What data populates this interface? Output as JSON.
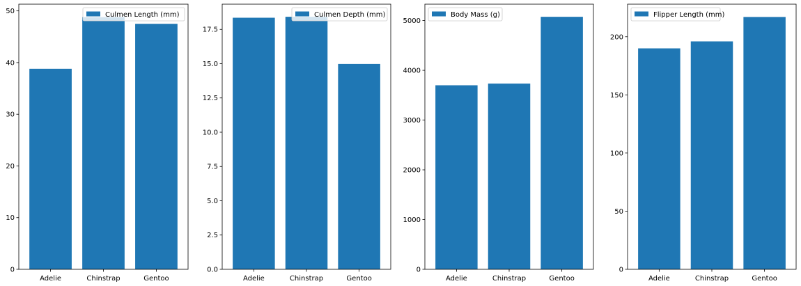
{
  "chart_data": [
    {
      "type": "bar",
      "categories": [
        "Adelie",
        "Chinstrap",
        "Gentoo"
      ],
      "series": [
        {
          "name": "Culmen Length (mm)",
          "values": [
            38.8,
            48.8,
            47.5
          ]
        }
      ],
      "ylim": [
        0,
        51.3
      ],
      "yticks": [
        0,
        10,
        20,
        30,
        40,
        50
      ],
      "ytick_labels": [
        "0",
        "10",
        "20",
        "30",
        "40",
        "50"
      ],
      "color": "#1f77b4",
      "legend": "top-right",
      "grid": false
    },
    {
      "type": "bar",
      "categories": [
        "Adelie",
        "Chinstrap",
        "Gentoo"
      ],
      "series": [
        {
          "name": "Culmen Depth (mm)",
          "values": [
            18.35,
            18.42,
            14.98
          ]
        }
      ],
      "ylim": [
        0,
        19.34
      ],
      "yticks": [
        0,
        2.5,
        5,
        7.5,
        10,
        12.5,
        15,
        17.5
      ],
      "ytick_labels": [
        "0.0",
        "2.5",
        "5.0",
        "7.5",
        "10.0",
        "12.5",
        "15.0",
        "17.5"
      ],
      "color": "#1f77b4",
      "legend": "top-right",
      "grid": false
    },
    {
      "type": "bar",
      "categories": [
        "Adelie",
        "Chinstrap",
        "Gentoo"
      ],
      "series": [
        {
          "name": "Body Mass (g)",
          "values": [
            3700,
            3733,
            5076
          ]
        }
      ],
      "ylim": [
        0,
        5330
      ],
      "yticks": [
        0,
        1000,
        2000,
        3000,
        4000,
        5000
      ],
      "ytick_labels": [
        "0",
        "1000",
        "2000",
        "3000",
        "4000",
        "5000"
      ],
      "color": "#1f77b4",
      "legend": "top-left",
      "grid": false
    },
    {
      "type": "bar",
      "categories": [
        "Adelie",
        "Chinstrap",
        "Gentoo"
      ],
      "series": [
        {
          "name": "Flipper Length (mm)",
          "values": [
            190,
            196,
            217
          ]
        }
      ],
      "ylim": [
        0,
        228
      ],
      "yticks": [
        0,
        50,
        100,
        150,
        200
      ],
      "ytick_labels": [
        "0",
        "50",
        "100",
        "150",
        "200"
      ],
      "color": "#1f77b4",
      "legend": "top-left",
      "grid": false
    }
  ]
}
